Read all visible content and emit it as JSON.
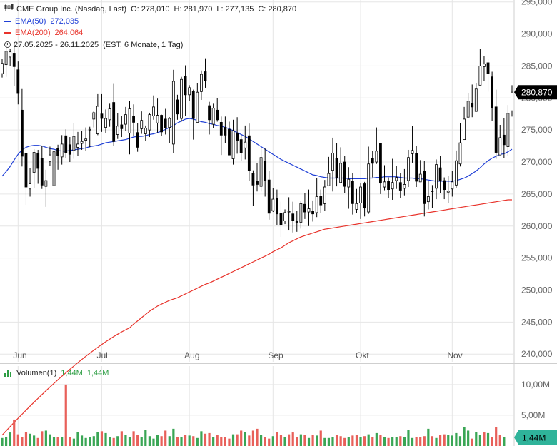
{
  "legend": {
    "title": "CME Group Inc. (Nasdaq, Last)",
    "open": "O: 278,010",
    "high": "H: 281,970",
    "low": "L: 277,135",
    "close": "C: 280,870",
    "ema50_label": "EMA(50)",
    "ema50_value": "272,035",
    "ema200_label": "EMA(200)",
    "ema200_value": "264,064",
    "period": "27.05.2025 - 26.11.2025",
    "period_detail": "(EST, 6 Monate, 1 Tag)"
  },
  "volume_legend": {
    "label": "Volumen(1)",
    "value1": "1,44M",
    "value2": "1,44M"
  },
  "colors": {
    "ema50": "#1f3fd6",
    "ema200": "#e8332b",
    "volume_up": "#3aa655",
    "volume_down": "#e8605a",
    "candle": "#000000",
    "grid": "#e6e6e6",
    "label_bg": "#000000"
  },
  "chart_data": [
    {
      "type": "candlestick",
      "price_axis": {
        "ticks": [
          "295,000",
          "290,000",
          "285,000",
          "280,000",
          "275,000",
          "270,000",
          "265,000",
          "260,000",
          "255,000",
          "250,000",
          "245,000",
          "240,000"
        ],
        "tick_values": [
          295,
          290,
          285,
          280,
          275,
          270,
          265,
          260,
          255,
          250,
          245,
          240
        ],
        "range": [
          238.8,
          295.3
        ],
        "last_price_label": "280,870"
      },
      "x_axis": {
        "range": [
          0,
          128
        ],
        "months": [
          {
            "label": "Jun",
            "index": 4
          },
          {
            "label": "Jul",
            "index": 25
          },
          {
            "label": "Aug",
            "index": 47
          },
          {
            "label": "Sep",
            "index": 68
          },
          {
            "label": "Okt",
            "index": 90
          },
          {
            "label": "Nov",
            "index": 113
          }
        ]
      },
      "candles": {
        "open": [
          283.8,
          285.2,
          286.4,
          287.0,
          284.4,
          278.1,
          271.4,
          265.8,
          268.4,
          271.3,
          270.6,
          266.2,
          270.1,
          266.3,
          272.1,
          270.8,
          274.1,
          272.7,
          271.8,
          272.3,
          272.9,
          273.4,
          275.0,
          276.7,
          274.4,
          277.5,
          275.4,
          276.6,
          279.3,
          274.3,
          275.8,
          275.9,
          274.5,
          277.1,
          274.6,
          275.2,
          274.4,
          275.0,
          277.2,
          276.1,
          277.3,
          276.7,
          275.4,
          272.8,
          279.7,
          276.8,
          283.4,
          280.5,
          281.0,
          276.2,
          281.0,
          284.1,
          278.8,
          275.9,
          278.1,
          276.2,
          275.4,
          275.1,
          270.5,
          274.5,
          273.5,
          272.2,
          274.1,
          268.2,
          267.0,
          266.2,
          270.1,
          267.2,
          262.4,
          264.3,
          262.0,
          260.8,
          262.3,
          261.9,
          260.7,
          260.6,
          263.4,
          262.2,
          262.3,
          262.1,
          264.7,
          263.5,
          266.3,
          268.7,
          270.6,
          266.8,
          270.0,
          266.1,
          267.0,
          262.6,
          263.6,
          266.6,
          262.2,
          270.6,
          270.0,
          272.9,
          266.1,
          267.0,
          265.8,
          267.1,
          266.8,
          265.9,
          267.1,
          271.3,
          271.3,
          266.9,
          268.6,
          263.8,
          265.5,
          265.9,
          269.1,
          267.1,
          265.3,
          265.8,
          266.4,
          269.7,
          273.5,
          277.0,
          279.2,
          277.9,
          282.0,
          284.9,
          285.5,
          283.3,
          278.6,
          271.1,
          274.2,
          272.4,
          278.0
        ],
        "close": [
          285.4,
          287.3,
          287.2,
          284.9,
          280.7,
          270.9,
          266.1,
          266.6,
          271.5,
          269.0,
          266.4,
          267.1,
          271.1,
          271.6,
          271.0,
          272.8,
          271.4,
          271.2,
          274.0,
          272.8,
          273.2,
          273.6,
          275.1,
          277.7,
          278.7,
          276.8,
          276.8,
          278.3,
          273.2,
          275.6,
          275.2,
          277.4,
          278.3,
          276.2,
          272.3,
          276.5,
          275.3,
          277.4,
          278.6,
          277.3,
          274.7,
          275.3,
          276.8,
          282.6,
          277.5,
          282.9,
          280.5,
          281.6,
          276.8,
          280.9,
          283.7,
          282.7,
          276.6,
          278.4,
          276.6,
          274.2,
          274.2,
          271.1,
          274.9,
          273.4,
          271.4,
          273.1,
          268.6,
          266.4,
          266.5,
          270.7,
          267.1,
          262.0,
          264.2,
          261.9,
          260.2,
          262.1,
          262.3,
          260.9,
          260.6,
          263.5,
          262.2,
          262.7,
          261.9,
          264.6,
          263.3,
          266.1,
          268.2,
          271.4,
          267.5,
          269.8,
          266.2,
          267.3,
          263.5,
          263.5,
          266.1,
          262.8,
          269.7,
          269.8,
          271.7,
          266.7,
          266.9,
          265.7,
          266.8,
          267.6,
          265.6,
          266.5,
          270.7,
          271.8,
          267.0,
          268.1,
          263.5,
          264.6,
          265.4,
          269.6,
          267.1,
          265.7,
          265.5,
          266.9,
          270.2,
          273.0,
          276.7,
          279.5,
          278.6,
          281.4,
          285.0,
          285.3,
          283.8,
          278.5,
          271.5,
          273.8,
          272.7,
          277.6,
          280.9
        ],
        "high": [
          286.1,
          288.6,
          287.7,
          288.7,
          285.7,
          281.4,
          272.6,
          269.1,
          272.0,
          271.9,
          272.5,
          268.8,
          272.4,
          272.1,
          272.7,
          274.2,
          275.1,
          273.9,
          276.1,
          274.7,
          274.9,
          275.4,
          275.5,
          278.0,
          280.6,
          280.6,
          278.2,
          279.1,
          282.2,
          277.6,
          277.2,
          278.6,
          279.5,
          279.0,
          276.1,
          277.9,
          275.7,
          277.7,
          280.4,
          279.9,
          277.4,
          278.3,
          277.0,
          284.4,
          280.5,
          283.3,
          285.1,
          282.0,
          281.3,
          282.3,
          284.3,
          286.2,
          279.4,
          279.1,
          280.0,
          277.1,
          277.1,
          276.3,
          276.6,
          277.0,
          274.3,
          275.7,
          276.0,
          268.7,
          269.8,
          272.2,
          272.1,
          268.6,
          265.9,
          265.7,
          263.8,
          262.6,
          264.5,
          263.8,
          262.4,
          263.9,
          265.2,
          265.7,
          264.0,
          267.5,
          265.7,
          267.2,
          270.8,
          273.8,
          272.9,
          272.3,
          271.0,
          269.2,
          268.3,
          265.8,
          266.7,
          266.9,
          272.4,
          271.7,
          275.4,
          272.2,
          269.5,
          267.6,
          270.5,
          269.4,
          268.3,
          268.9,
          271.9,
          275.6,
          272.5,
          270.3,
          270.2,
          267.0,
          266.4,
          270.4,
          270.9,
          267.6,
          267.8,
          268.6,
          271.8,
          276.1,
          278.6,
          280.7,
          282.1,
          282.3,
          287.7,
          286.5,
          286.1,
          284.1,
          281.3,
          275.8,
          276.9,
          278.9,
          282.0
        ],
        "low": [
          283.2,
          283.3,
          285.0,
          281.9,
          279.0,
          269.3,
          263.3,
          264.6,
          265.9,
          266.6,
          265.8,
          263.0,
          269.4,
          266.2,
          268.8,
          269.6,
          270.6,
          270.0,
          270.5,
          270.9,
          271.9,
          271.7,
          272.3,
          275.4,
          274.2,
          274.7,
          274.5,
          275.5,
          272.5,
          273.6,
          273.9,
          274.9,
          271.2,
          274.0,
          271.6,
          274.4,
          273.3,
          273.9,
          276.6,
          274.6,
          274.1,
          274.3,
          272.9,
          271.4,
          276.6,
          276.3,
          277.2,
          279.5,
          273.5,
          276.2,
          279.7,
          281.6,
          274.3,
          275.3,
          276.3,
          271.1,
          272.9,
          271.1,
          269.6,
          271.3,
          270.2,
          270.4,
          267.1,
          263.2,
          265.4,
          265.4,
          264.6,
          261.0,
          262.2,
          260.2,
          258.3,
          260.3,
          259.3,
          259.0,
          259.1,
          259.6,
          261.1,
          260.0,
          260.7,
          261.4,
          262.0,
          262.4,
          267.9,
          265.4,
          266.2,
          268.5,
          265.1,
          262.7,
          261.8,
          262.0,
          261.1,
          261.5,
          261.9,
          267.6,
          269.7,
          265.0,
          265.6,
          264.4,
          264.1,
          265.8,
          264.4,
          264.8,
          266.1,
          269.9,
          266.1,
          267.6,
          261.5,
          262.6,
          262.8,
          264.2,
          265.2,
          264.2,
          263.6,
          264.6,
          266.0,
          269.3,
          274.2,
          277.2,
          277.0,
          278.1,
          282.4,
          282.6,
          281.0,
          276.4,
          270.5,
          272.6,
          270.6,
          270.9,
          277.1
        ]
      },
      "ema50": [
        267.8,
        268.5,
        269.3,
        270.3,
        271.2,
        271.9,
        272.3,
        272.5,
        272.6,
        272.6,
        272.5,
        272.3,
        272.1,
        272.0,
        271.8,
        271.7,
        271.7,
        271.8,
        271.9,
        272.0,
        272.1,
        272.2,
        272.4,
        272.5,
        272.6,
        272.8,
        273.0,
        273.1,
        273.2,
        273.3,
        273.4,
        273.5,
        273.7,
        273.9,
        274.0,
        274.0,
        274.1,
        274.3,
        274.4,
        274.6,
        274.8,
        275.1,
        275.4,
        275.7,
        276.1,
        276.4,
        276.7,
        276.8,
        276.7,
        276.5,
        276.3,
        276.2,
        276.0,
        275.9,
        275.7,
        275.6,
        275.4,
        275.2,
        274.9,
        274.6,
        274.3,
        274.0,
        273.6,
        273.2,
        272.8,
        272.4,
        272.0,
        271.6,
        271.2,
        270.8,
        270.4,
        270.1,
        269.8,
        269.5,
        269.2,
        268.9,
        268.6,
        268.3,
        268.0,
        267.9,
        267.7,
        267.6,
        267.5,
        267.5,
        267.5,
        267.5,
        267.5,
        267.4,
        267.4,
        267.4,
        267.4,
        267.4,
        267.5,
        267.5,
        267.6,
        267.6,
        267.7,
        267.7,
        267.7,
        267.7,
        267.6,
        267.5,
        267.5,
        267.5,
        267.4,
        267.4,
        267.3,
        267.2,
        267.1,
        267.0,
        267.0,
        267.0,
        267.0,
        267.0,
        267.1,
        267.3,
        267.5,
        267.8,
        268.2,
        268.6,
        269.1,
        269.7,
        270.2,
        270.6,
        270.9,
        271.2,
        271.3,
        271.6,
        272.0
      ],
      "ema200": [
        244.1,
        244.7,
        245.2,
        245.7,
        246.2,
        246.7,
        247.1,
        247.5,
        247.8,
        248.1,
        248.4,
        248.6,
        248.8,
        249.1,
        249.4,
        249.7,
        250.0,
        250.3,
        250.6,
        250.9,
        251.1,
        251.4,
        251.7,
        252.0,
        252.3,
        252.6,
        252.9,
        253.2,
        253.5,
        253.8,
        254.1,
        254.4,
        254.7,
        255.0,
        255.3,
        255.6,
        256.0,
        256.3,
        256.6,
        257.0,
        257.4,
        257.7,
        258.0,
        258.3,
        258.5,
        258.7,
        258.9,
        259.1,
        259.3,
        259.5,
        259.6,
        259.7,
        259.8,
        259.9,
        260.0,
        260.1,
        260.2,
        260.3,
        260.4,
        260.5,
        260.6,
        260.7,
        260.8,
        260.9,
        261.0,
        261.1,
        261.2,
        261.3,
        261.4,
        261.5,
        261.6,
        261.7,
        261.8,
        261.9,
        262.0,
        262.1,
        262.2,
        262.3,
        262.4,
        262.5,
        262.6,
        262.7,
        262.8,
        262.9,
        263.0,
        263.1,
        263.2,
        263.3,
        263.4,
        263.5,
        263.6,
        263.7,
        263.8,
        263.9,
        264.0,
        264.1,
        264.1
      ],
      "ema200_start_index": 32
    },
    {
      "type": "bar",
      "title": "Volumen(1)",
      "y_axis": {
        "ticks": [
          "10,00M",
          "5,00M"
        ],
        "tick_values": [
          10,
          5
        ],
        "range": [
          0,
          13.0
        ],
        "last_value_label": "1,44M"
      },
      "x_axis": {
        "range": [
          0,
          128
        ]
      },
      "values": [
        1.3,
        1.5,
        2.2,
        4.3,
        1.9,
        1.5,
        2.3,
        2.0,
        1.7,
        1.3,
        2.4,
        2.5,
        1.9,
        1.4,
        1.5,
        1.5,
        10.0,
        1.5,
        1.2,
        2.3,
        1.7,
        1.3,
        1.5,
        1.6,
        2.3,
        2.4,
        2.1,
        1.5,
        1.3,
        1.6,
        2.4,
        1.8,
        1.4,
        2.4,
        1.8,
        1.4,
        2.6,
        1.6,
        1.2,
        1.8,
        1.6,
        2.5,
        1.6,
        2.8,
        1.5,
        1.4,
        1.8,
        1.7,
        1.6,
        1.3,
        2.4,
        2.0,
        2.1,
        1.4,
        1.8,
        1.5,
        1.5,
        1.2,
        1.9,
        1.9,
        2.5,
        2.3,
        1.7,
        2.5,
        2.8,
        1.8,
        1.4,
        1.2,
        1.6,
        2.3,
        1.8,
        1.5,
        1.9,
        2.2,
        1.5,
        1.9,
        1.8,
        1.3,
        1.8,
        1.7,
        2.5,
        1.3,
        1.3,
        1.5,
        1.8,
        1.6,
        1.3,
        1.4,
        1.7,
        1.8,
        1.5,
        1.6,
        1.9,
        1.4,
        2.1,
        1.8,
        1.5,
        1.3,
        1.5,
        1.5,
        1.6,
        1.4,
        2.6,
        1.3,
        1.5,
        1.4,
        1.6,
        2.8,
        1.6,
        1.3,
        1.8,
        1.9,
        1.8,
        1.7,
        2.1,
        1.6,
        3.1,
        2.5,
        1.2,
        2.3,
        1.8,
        2.2,
        2.1,
        1.5,
        3.1,
        1.8,
        1.4
      ],
      "up": [
        true,
        true,
        true,
        false,
        false,
        false,
        false,
        true,
        true,
        false,
        false,
        true,
        true,
        true,
        false,
        true,
        false,
        false,
        true,
        true,
        true,
        true,
        true,
        true,
        true,
        false,
        true,
        true,
        false,
        true,
        false,
        true,
        true,
        false,
        false,
        true,
        true,
        true,
        true,
        true,
        false,
        false,
        true,
        true,
        false,
        true,
        false,
        true,
        false,
        true,
        true,
        false,
        false,
        true,
        false,
        false,
        false,
        false,
        true,
        false,
        false,
        true,
        false,
        false,
        false,
        true,
        false,
        false,
        true,
        false,
        false,
        true,
        false,
        false,
        false,
        true,
        false,
        true,
        false,
        true,
        false,
        true,
        true,
        true,
        false,
        false,
        false,
        true,
        false,
        false,
        true,
        false,
        true,
        false,
        true,
        false,
        true,
        false,
        true,
        true,
        false,
        true,
        true,
        true,
        false,
        false,
        false,
        true,
        false,
        true,
        false,
        false,
        true,
        true,
        true,
        true,
        true,
        true,
        false,
        true,
        true,
        false,
        true,
        false,
        false,
        false,
        true,
        true
      ]
    }
  ]
}
